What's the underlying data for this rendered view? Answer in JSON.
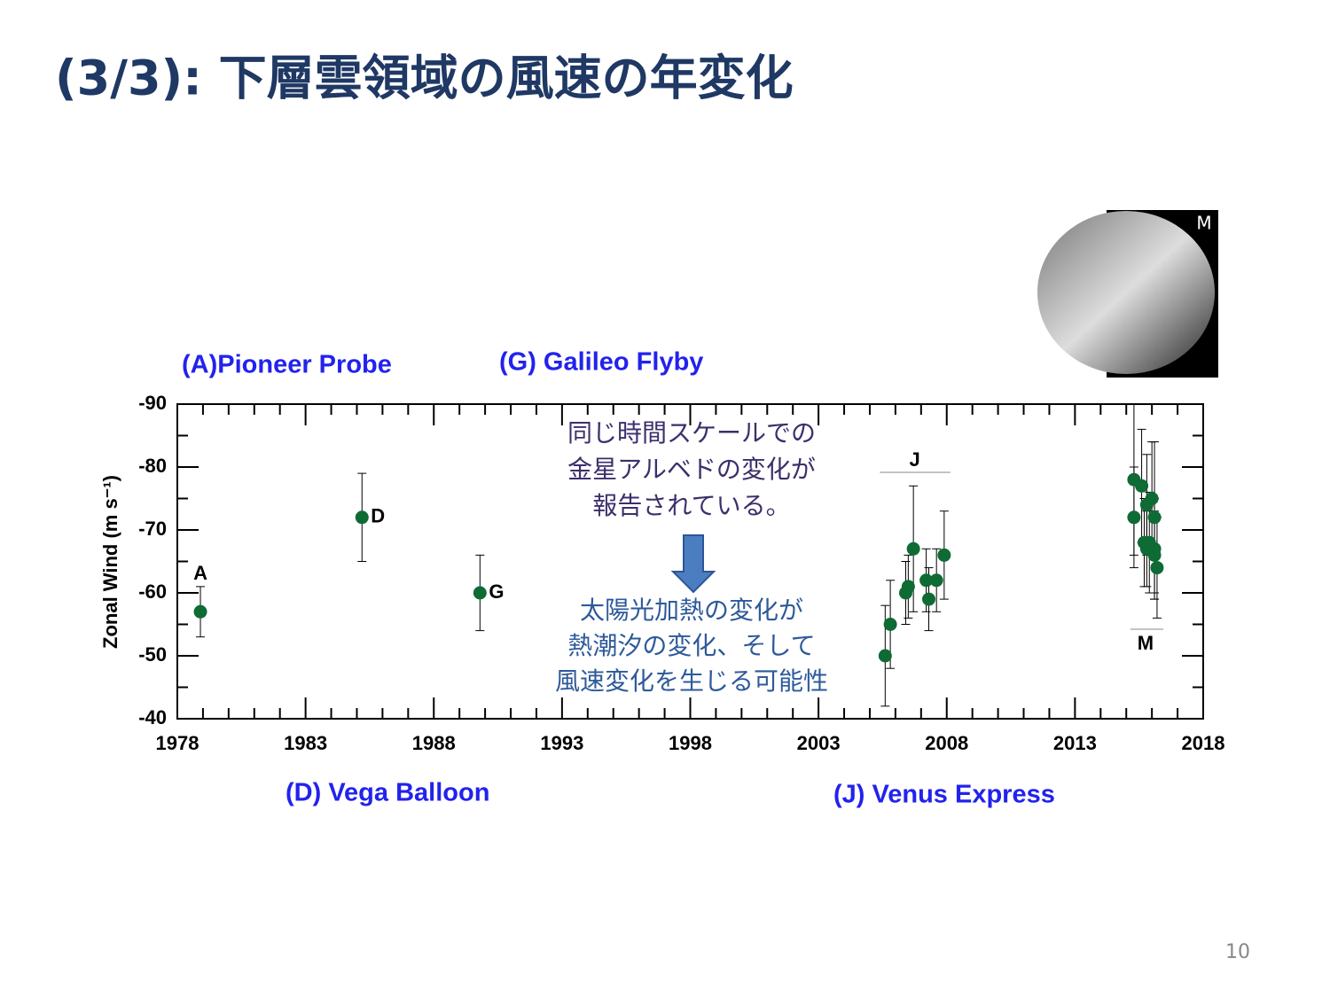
{
  "title": "(3/3): 下層雲領域の風速の年変化",
  "page_number": "10",
  "image_label": "M",
  "notes": {
    "albedo": [
      "同じ時間スケールでの",
      "金星アルベドの変化が",
      "報告されている。"
    ],
    "heating": [
      "太陽光加熱の変化が",
      "熱潮汐の変化、そして",
      "風速変化を生じる可能性"
    ]
  },
  "missions": [
    "(A)Pioneer Probe",
    "(G) Galileo Flyby",
    "(D) Vega Balloon",
    "(J) Venus Express"
  ],
  "chart_data": {
    "type": "scatter",
    "ylabel": "Zonal Wind (m s⁻¹)",
    "xlim": [
      1978,
      2018
    ],
    "xticks": [
      1978,
      1983,
      1988,
      1993,
      1998,
      2003,
      2008,
      2013,
      2018
    ],
    "xminorticks": [
      1979,
      1980,
      1981,
      1982,
      1984,
      1985,
      1986,
      1987,
      1989,
      1990,
      1991,
      1992,
      1994,
      1995,
      1996,
      1997,
      1999,
      2000,
      2001,
      2002,
      2004,
      2005,
      2006,
      2007,
      2009,
      2010,
      2011,
      2012,
      2014,
      2015,
      2016,
      2017
    ],
    "ylim": [
      -40,
      -90
    ],
    "yticks": [
      -90,
      -80,
      -70,
      -60,
      -50,
      -40
    ],
    "yminorticks": [
      -85,
      -75,
      -65,
      -55,
      -45
    ],
    "color": "#0e6b34",
    "groups": [
      {
        "label": "A",
        "x": [
          1978.9
        ],
        "values": [
          -57
        ],
        "errors": [
          4
        ]
      },
      {
        "label": "D",
        "x": [
          1985.2
        ],
        "values": [
          -72
        ],
        "errors": [
          7
        ]
      },
      {
        "label": "G",
        "x": [
          1989.8
        ],
        "values": [
          -60
        ],
        "errors": [
          6
        ]
      },
      {
        "label": "J",
        "x": [
          2005.6,
          2005.8,
          2006.4,
          2006.5,
          2006.7,
          2007.2,
          2007.3,
          2007.6,
          2007.9
        ],
        "values": [
          -50,
          -55,
          -60,
          -61,
          -67,
          -62,
          -59,
          -62,
          -66
        ],
        "errors": [
          8,
          7,
          5,
          5,
          10,
          5,
          5,
          5,
          7
        ]
      },
      {
        "label": "M",
        "x": [
          2015.3,
          2015.3,
          2015.6,
          2015.8,
          2015.7,
          2015.8,
          2015.9,
          2016.0,
          2016.1,
          2016.1,
          2016.1,
          2016.2
        ],
        "values": [
          -78,
          -72,
          -77,
          -74,
          -68,
          -67,
          -68,
          -75,
          -72,
          -67,
          -66,
          -64
        ],
        "errors": [
          12,
          8,
          9,
          8,
          7,
          6,
          8,
          9,
          12,
          8,
          7,
          8
        ]
      }
    ]
  }
}
